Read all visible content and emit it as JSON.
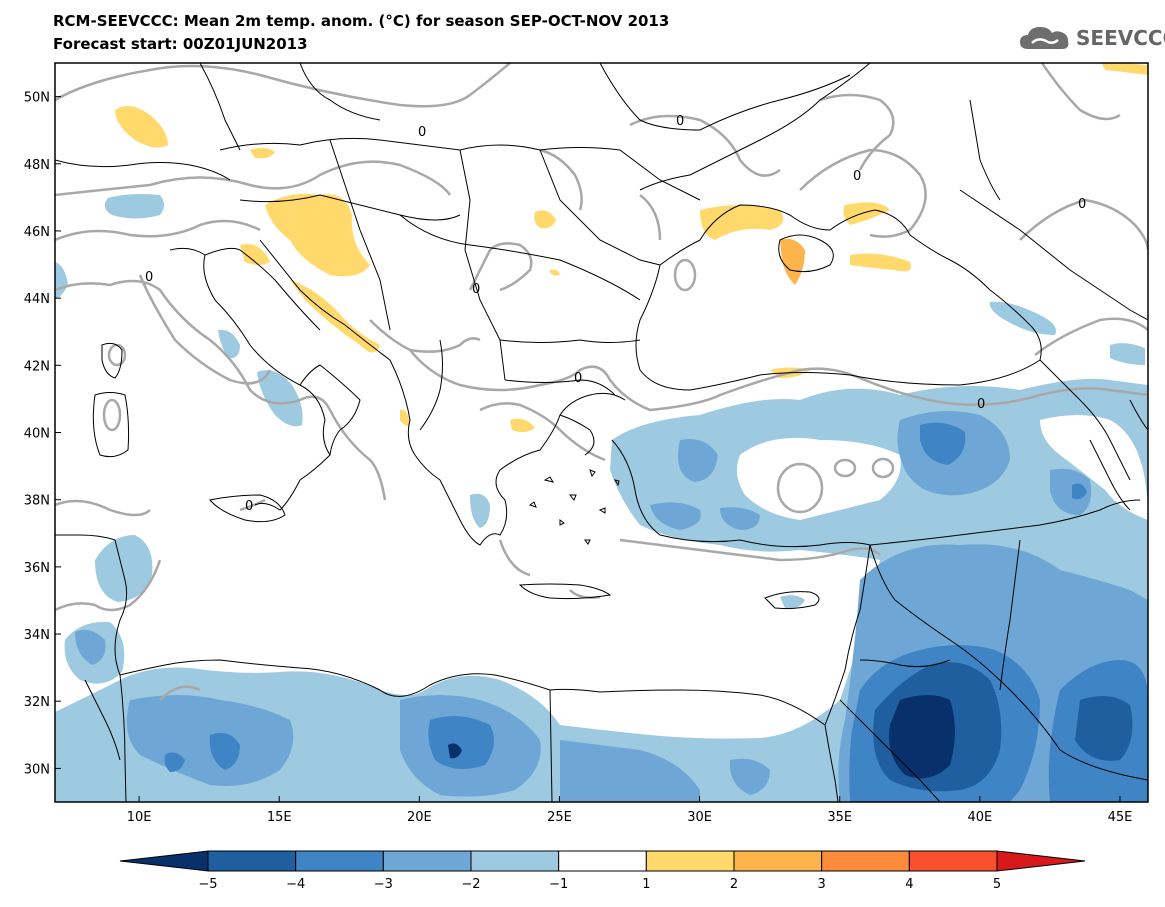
{
  "title_line1": "RCM-SEEVCCC: Mean 2m temp. anom. (°C) for season SEP-OCT-NOV 2013",
  "title_line2": "Forecast start: 00Z01JUN2013",
  "logo": {
    "icon": "cloud-logo-icon",
    "text": "SEEVCCC"
  },
  "map": {
    "lon_range": [
      7,
      46
    ],
    "lat_range": [
      29,
      51
    ],
    "x_ticks": [
      "10E",
      "15E",
      "20E",
      "25E",
      "30E",
      "35E",
      "40E",
      "45E"
    ],
    "y_ticks": [
      "30N",
      "32N",
      "34N",
      "36N",
      "38N",
      "40N",
      "42N",
      "44N",
      "46N",
      "48N",
      "50N"
    ],
    "contour_label": "0"
  },
  "colorbar": {
    "labels": [
      "-5",
      "-4",
      "-3",
      "-2",
      "-1",
      "1",
      "2",
      "3",
      "4",
      "5"
    ],
    "colors": [
      "#08306b",
      "#1f5f9f",
      "#3f84c4",
      "#6ea7d6",
      "#9ecae1",
      "#ffffff",
      "#ffd96b",
      "#fdb44a",
      "#fd8b3c",
      "#f84f2c",
      "#d7191c"
    ]
  }
}
